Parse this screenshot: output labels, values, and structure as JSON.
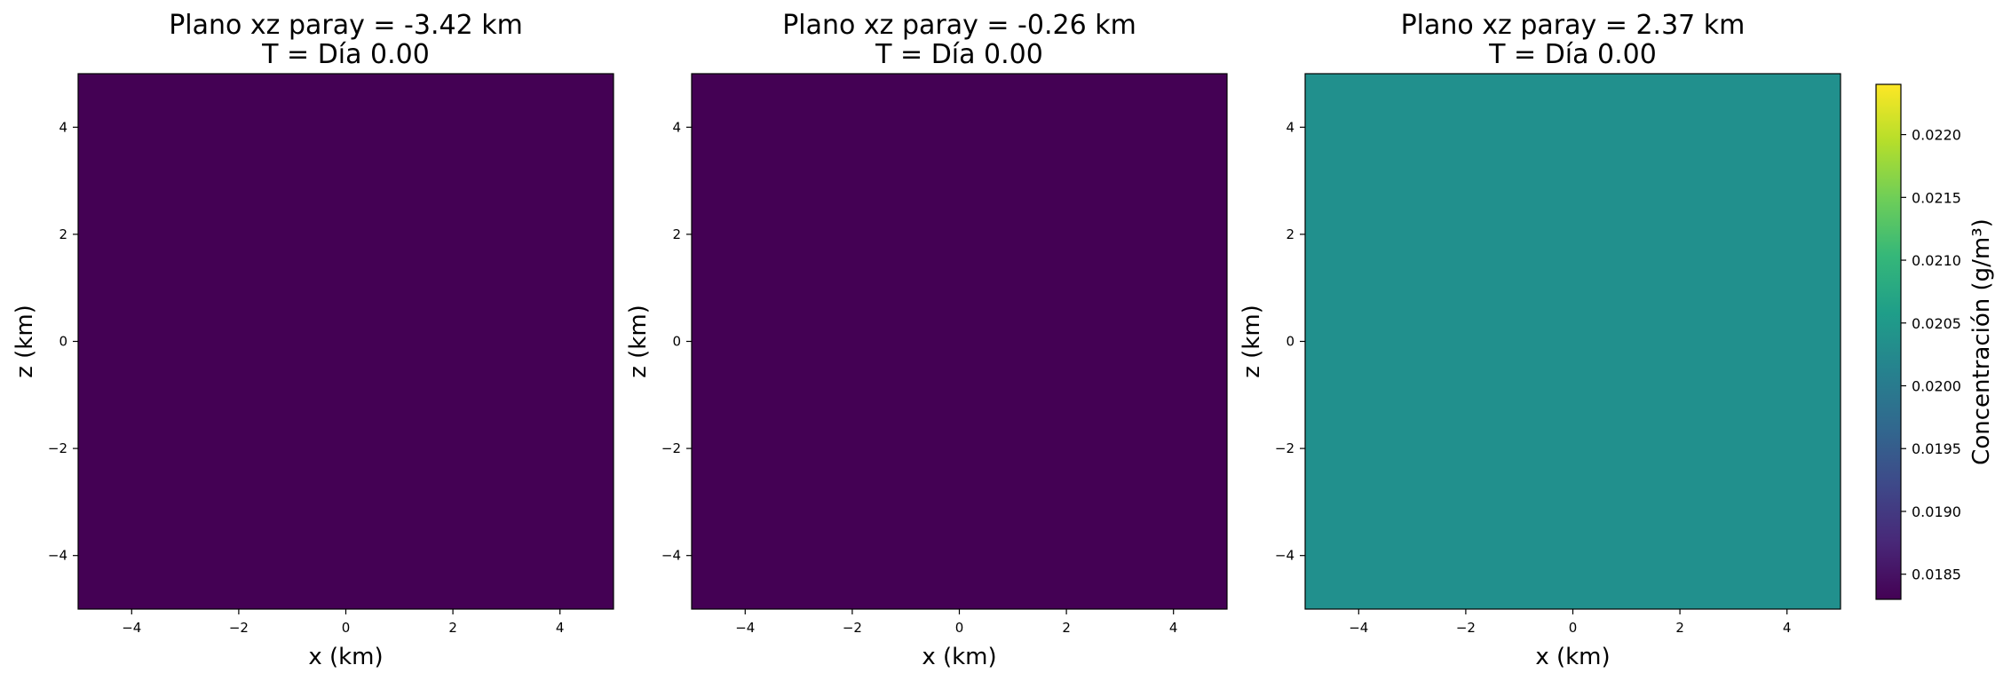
{
  "chart_data": {
    "type": "heatmap",
    "colormap": "viridis",
    "panels": [
      {
        "title_line1": "Plano xz paray = -3.42 km",
        "title_line2": "T = Día 0.00",
        "xlabel": "x (km)",
        "ylabel": "z (km)",
        "xlim": [
          -5,
          5
        ],
        "ylim": [
          -5,
          5
        ],
        "xticks": [
          -4,
          -2,
          0,
          2,
          4
        ],
        "yticks": [
          -4,
          -2,
          0,
          2,
          4
        ],
        "value": 0.0183,
        "color": "#440154"
      },
      {
        "title_line1": "Plano xz paray = -0.26 km",
        "title_line2": "T = Día 0.00",
        "xlabel": "x (km)",
        "ylabel": "z (km)",
        "xlim": [
          -5,
          5
        ],
        "ylim": [
          -5,
          5
        ],
        "xticks": [
          -4,
          -2,
          0,
          2,
          4
        ],
        "yticks": [
          -4,
          -2,
          0,
          2,
          4
        ],
        "value": 0.0183,
        "color": "#440154"
      },
      {
        "title_line1": "Plano xz paray = 2.37 km",
        "title_line2": "T = Día 0.00",
        "xlabel": "x (km)",
        "ylabel": "z (km)",
        "xlim": [
          -5,
          5
        ],
        "ylim": [
          -5,
          5
        ],
        "xticks": [
          -4,
          -2,
          0,
          2,
          4
        ],
        "yticks": [
          -4,
          -2,
          0,
          2,
          4
        ],
        "value": 0.02035,
        "color": "#21908d"
      }
    ],
    "colorbar": {
      "label": "Concentración (g/m³)",
      "range": [
        0.0183,
        0.0224
      ],
      "ticks": [
        0.0185,
        0.019,
        0.0195,
        0.02,
        0.0205,
        0.021,
        0.0215,
        0.022
      ],
      "tick_labels": [
        "0.0185",
        "0.0190",
        "0.0195",
        "0.0200",
        "0.0205",
        "0.0210",
        "0.0215",
        "0.0220"
      ],
      "colors": [
        "#440154",
        "#482878",
        "#3e4989",
        "#31688e",
        "#26828e",
        "#1f9e89",
        "#35b779",
        "#6ece58",
        "#b5de2b",
        "#fde725"
      ]
    }
  }
}
